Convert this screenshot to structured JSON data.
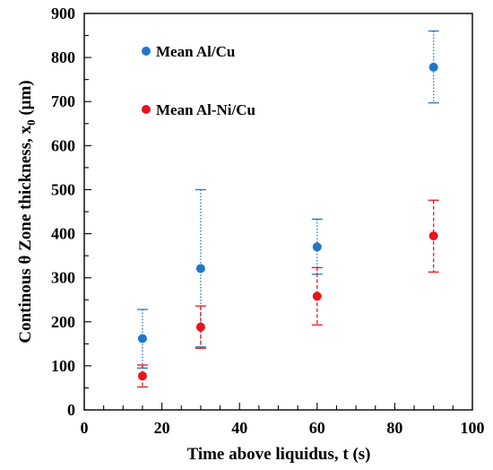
{
  "chart_data": {
    "type": "scatter",
    "title": "",
    "xlabel": "Time above liquidus, t (s)",
    "ylabel_prefix": "Continous θ Zone thickness, x",
    "ylabel_subscript": "0",
    "ylabel_suffix": " (μm)",
    "xlim": [
      0,
      100
    ],
    "ylim": [
      0,
      900
    ],
    "xticks": [
      0,
      20,
      40,
      60,
      80,
      100
    ],
    "yticks": [
      0,
      100,
      200,
      300,
      400,
      500,
      600,
      700,
      800,
      900
    ],
    "x_minor_step": 5,
    "y_minor_step": 50,
    "grid": false,
    "legend_position": "top-left",
    "series": [
      {
        "name": "Mean Al/Cu",
        "color": "#1f77c9",
        "errorbar_style": "dotted",
        "points": [
          {
            "x": 15,
            "y": 162,
            "low": 95,
            "high": 228
          },
          {
            "x": 30,
            "y": 321,
            "low": 143,
            "high": 500
          },
          {
            "x": 60,
            "y": 370,
            "low": 308,
            "high": 433
          },
          {
            "x": 90,
            "y": 778,
            "low": 697,
            "high": 860
          }
        ]
      },
      {
        "name": "Mean Al-Ni/Cu",
        "color": "#e8141c",
        "errorbar_style": "dashed",
        "points": [
          {
            "x": 15,
            "y": 77,
            "low": 52,
            "high": 102
          },
          {
            "x": 30,
            "y": 188,
            "low": 140,
            "high": 236
          },
          {
            "x": 60,
            "y": 258,
            "low": 193,
            "high": 323
          },
          {
            "x": 90,
            "y": 395,
            "low": 313,
            "high": 476
          }
        ]
      }
    ]
  }
}
